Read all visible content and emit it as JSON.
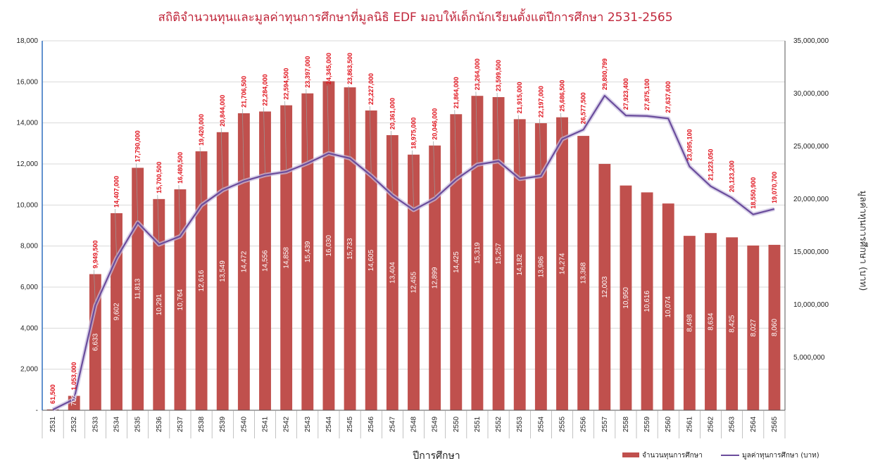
{
  "chart_data": {
    "type": "bar+line",
    "title": "สถิติจำนวนทุนและมูลค่าทุนการศึกษาที่มูลนิธิ EDF มอบให้เด็กนักเรียนตั้งแต่ปีการศึกษา 2531-2565",
    "xlabel": "ปีการศึกษา",
    "ylabel_right": "มูลค่าทุนการศึกษา (บาท)",
    "categories": [
      "2531",
      "2532",
      "2533",
      "2534",
      "2535",
      "2536",
      "2537",
      "2538",
      "2539",
      "2540",
      "2541",
      "2542",
      "2543",
      "2544",
      "2545",
      "2546",
      "2547",
      "2548",
      "2549",
      "2550",
      "2551",
      "2552",
      "2553",
      "2554",
      "2555",
      "2556",
      "2557",
      "2558",
      "2559",
      "2560",
      "2561",
      "2562",
      "2563",
      "2564",
      "2565"
    ],
    "series": [
      {
        "name": "จำนวนทุนการศึกษา",
        "axis": "left",
        "color": "#c0504d",
        "values": [
          41,
          702,
          6633,
          9602,
          11813,
          10291,
          10764,
          12616,
          13549,
          14472,
          14556,
          14858,
          15439,
          16030,
          15733,
          14605,
          13404,
          12455,
          12899,
          14425,
          15319,
          15257,
          14182,
          13986,
          14274,
          13368,
          12003,
          10950,
          10616,
          10074,
          8498,
          8634,
          8425,
          8027,
          8060
        ],
        "labels": [
          "41",
          "702",
          "6,633",
          "9,602",
          "11,813",
          "10,291",
          "10,764",
          "12,616",
          "13,549",
          "14,472",
          "14,556",
          "14,858",
          "15,439",
          "16,030",
          "15,733",
          "14,605",
          "13,404",
          "12,455",
          "12,899",
          "14,425",
          "15,319",
          "15,257",
          "14,182",
          "13,986",
          "14,274",
          "13,368",
          "12,003",
          "10,950",
          "10,616",
          "10,074",
          "8,498",
          "8,634",
          "8,425",
          "8,027",
          "8,060"
        ]
      },
      {
        "name": "มูลค่าทุนการศึกษา (บาท)",
        "axis": "right",
        "color": "#6a4c9c",
        "values": [
          61500,
          1053000,
          9949500,
          14407000,
          17790000,
          15700500,
          16480500,
          19420000,
          20844000,
          21706500,
          22284000,
          22594500,
          23397000,
          24345000,
          23863500,
          22227000,
          20361000,
          18975000,
          20046000,
          21864000,
          23264000,
          23599500,
          21915000,
          22197000,
          25686500,
          26577500,
          29800799,
          27923400,
          27875100,
          27637600,
          23095100,
          21223050,
          20123200,
          18550900,
          19070700
        ],
        "labels": [
          "61,500",
          "1,053,000",
          "9,949,500",
          "14,407,000",
          "17,790,000",
          "15,700,500",
          "16,480,500",
          "19,420,000",
          "20,844,000",
          "21,706,500",
          "22,284,000",
          "22,594,500",
          "23,397,000",
          "24,345,000",
          "23,863,500",
          "22,227,000",
          "20,361,000",
          "18,975,000",
          "20,046,000",
          "21,864,000",
          "23,264,000",
          "23,599,500",
          "21,915,000",
          "22,197,000",
          "25,686,500",
          "26,577,500",
          "29,800,799",
          "27,923,400",
          "27,875,100",
          "27,637,600",
          "23,095,100",
          "21,223,050",
          "20,123,200",
          "18,550,900",
          "19,070,700"
        ]
      }
    ],
    "ylim_left": [
      0,
      18000
    ],
    "yticks_left": [
      "-",
      "2,000",
      "4,000",
      "6,000",
      "8,000",
      "10,000",
      "12,000",
      "14,000",
      "16,000",
      "18,000"
    ],
    "ylim_right": [
      0,
      35000000
    ],
    "yticks_right": [
      "5,000,000",
      "10,000,000",
      "15,000,000",
      "20,000,000",
      "25,000,000",
      "30,000,000",
      "35,000,000"
    ],
    "grid": true,
    "legend_position": "bottom-right"
  }
}
